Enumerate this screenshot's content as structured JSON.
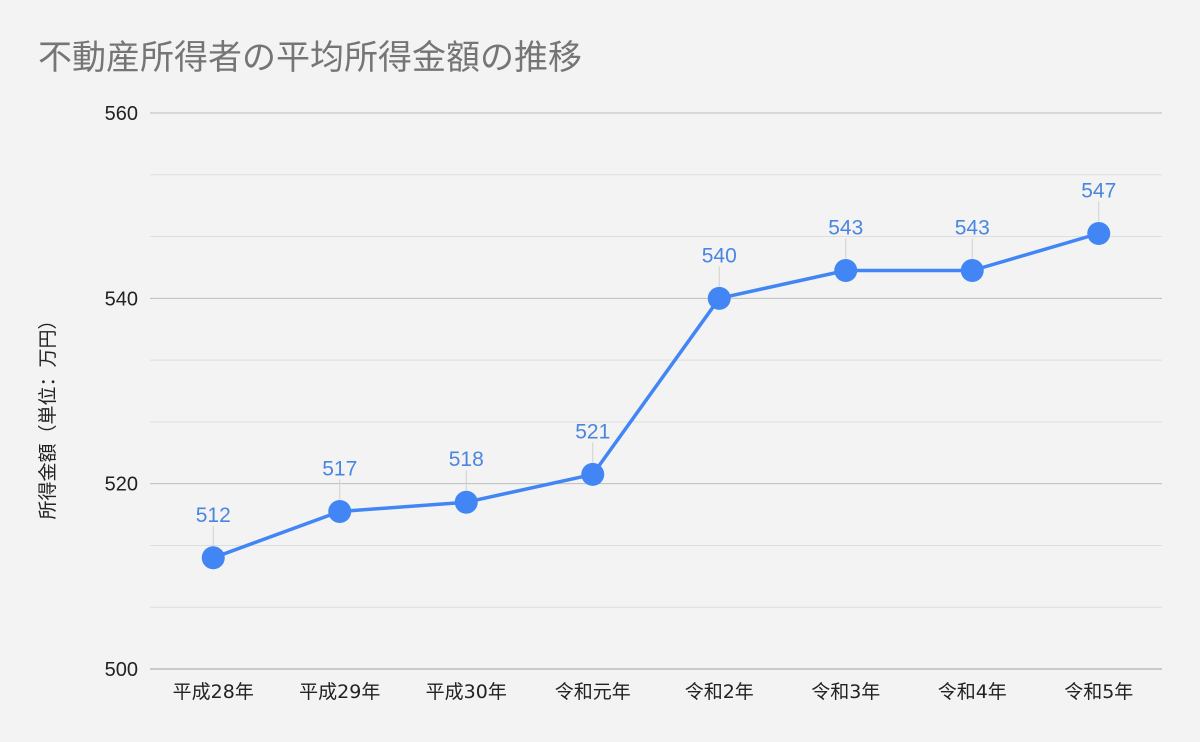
{
  "chart_data": {
    "type": "line",
    "title": "不動産所得者の平均所得金額の推移",
    "xlabel": "",
    "ylabel": "所得金額（単位：万円）",
    "categories": [
      "平成28年",
      "平成29年",
      "平成30年",
      "令和元年",
      "令和2年",
      "令和3年",
      "令和4年",
      "令和5年"
    ],
    "values": [
      512,
      517,
      518,
      521,
      540,
      543,
      543,
      547
    ],
    "ylim": [
      500,
      560
    ],
    "yticks": [
      500,
      520,
      540,
      560
    ],
    "grid": true,
    "legend": "none",
    "colors": {
      "line": "#4285f4",
      "label": "#4a86e0",
      "major_grid": "#bdbdbd",
      "minor_grid": "#dedede"
    }
  }
}
